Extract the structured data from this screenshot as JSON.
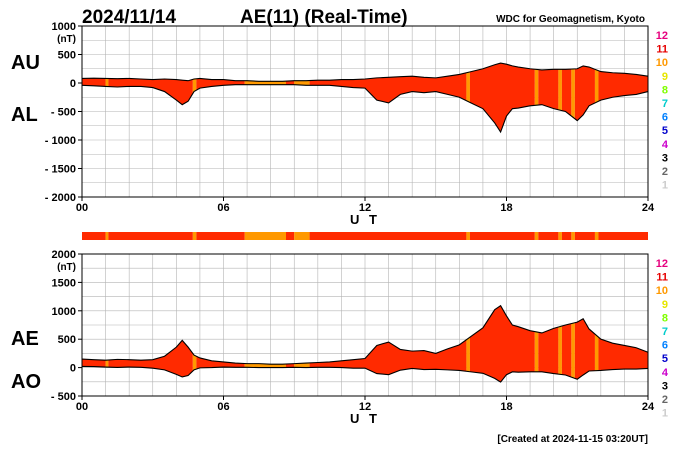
{
  "header": {
    "date": "2024/11/14",
    "title": "AE(11) (Real-Time)",
    "credit": "WDC for Geomagnetism, Kyoto"
  },
  "footer": {
    "created": "[Created at 2024-11-15 03:20UT]"
  },
  "legend": {
    "labels": [
      "12",
      "11",
      "10",
      "9",
      "8",
      "7",
      "6",
      "5",
      "4",
      "3",
      "2",
      "1"
    ],
    "colors": [
      "#e6007e",
      "#e60000",
      "#ff9900",
      "#e6e600",
      "#80ff00",
      "#00cccc",
      "#0080ff",
      "#0000cc",
      "#cc00cc",
      "#000000",
      "#666666",
      "#cccccc"
    ]
  },
  "colors": {
    "fill": "#ff2a00",
    "band10": "#ff9900",
    "band9": "#ffd400",
    "line": "#000000"
  },
  "chart_data": [
    {
      "type": "area",
      "side_labels": [
        "AU",
        "AL"
      ],
      "unit": "(nT)",
      "xlabel": "U T",
      "xlim": [
        0,
        24
      ],
      "ylim": [
        -2000,
        1000
      ],
      "yticks": [
        1000,
        500,
        0,
        -500,
        -1000,
        -1500,
        -2000
      ],
      "ytick_labels": [
        "1000",
        "500",
        "0",
        "- 500",
        "- 1000",
        "- 1500",
        "- 2000"
      ],
      "xticks": [
        0,
        6,
        12,
        18,
        24
      ],
      "xtick_labels": [
        "00",
        "06",
        "12",
        "18",
        "24"
      ],
      "grid": true,
      "x": [
        0,
        0.5,
        1,
        1.5,
        2,
        2.5,
        3,
        3.5,
        4,
        4.25,
        4.5,
        4.75,
        5,
        5.5,
        6,
        6.5,
        7,
        7.5,
        8,
        8.5,
        9,
        9.5,
        10,
        10.5,
        11,
        11.5,
        12,
        12.5,
        13,
        13.5,
        14,
        14.5,
        15,
        15.5,
        16,
        16.5,
        17,
        17.5,
        17.75,
        18,
        18.25,
        18.5,
        19,
        19.5,
        20,
        20.5,
        21,
        21.25,
        21.5,
        22,
        22.5,
        23,
        23.5,
        24
      ],
      "series": [
        {
          "name": "AU",
          "values": [
            80,
            85,
            80,
            75,
            80,
            70,
            60,
            70,
            60,
            50,
            40,
            70,
            80,
            60,
            60,
            40,
            40,
            30,
            30,
            30,
            40,
            40,
            50,
            50,
            60,
            60,
            70,
            90,
            100,
            110,
            120,
            100,
            90,
            120,
            150,
            200,
            250,
            320,
            350,
            330,
            300,
            280,
            250,
            230,
            240,
            240,
            250,
            300,
            280,
            200,
            180,
            170,
            150,
            120
          ]
        },
        {
          "name": "AL",
          "values": [
            -40,
            -50,
            -60,
            -70,
            -60,
            -60,
            -80,
            -150,
            -300,
            -380,
            -320,
            -150,
            -90,
            -60,
            -40,
            -30,
            -30,
            -30,
            -30,
            -30,
            -30,
            -40,
            -40,
            -40,
            -60,
            -80,
            -90,
            -300,
            -350,
            -200,
            -150,
            -170,
            -150,
            -200,
            -250,
            -350,
            -450,
            -700,
            -860,
            -580,
            -450,
            -440,
            -400,
            -380,
            -450,
            -500,
            -660,
            -560,
            -400,
            -300,
            -250,
            -220,
            -200,
            -150
          ]
        }
      ]
    },
    {
      "type": "area",
      "side_labels": [
        "AE",
        "AO"
      ],
      "unit": "(nT)",
      "xlabel": "U T",
      "xlim": [
        0,
        24
      ],
      "ylim": [
        -500,
        2000
      ],
      "yticks": [
        2000,
        1500,
        1000,
        500,
        0,
        -500
      ],
      "ytick_labels": [
        "2000",
        "1500",
        "1000",
        "500",
        "0",
        "- 500"
      ],
      "xticks": [
        0,
        6,
        12,
        18,
        24
      ],
      "xtick_labels": [
        "00",
        "06",
        "12",
        "18",
        "24"
      ],
      "grid": true,
      "x": [
        0,
        0.5,
        1,
        1.5,
        2,
        2.5,
        3,
        3.5,
        4,
        4.25,
        4.5,
        4.75,
        5,
        5.5,
        6,
        6.5,
        7,
        7.5,
        8,
        8.5,
        9,
        9.5,
        10,
        10.5,
        11,
        11.5,
        12,
        12.5,
        13,
        13.5,
        14,
        14.5,
        15,
        15.5,
        16,
        16.5,
        17,
        17.5,
        17.75,
        18,
        18.25,
        18.5,
        19,
        19.5,
        20,
        20.5,
        21,
        21.25,
        21.5,
        22,
        22.5,
        23,
        23.5,
        24
      ],
      "series": [
        {
          "name": "AE",
          "values": [
            150,
            140,
            130,
            145,
            140,
            130,
            140,
            200,
            360,
            480,
            360,
            220,
            170,
            120,
            100,
            80,
            70,
            70,
            60,
            60,
            70,
            80,
            90,
            100,
            120,
            140,
            160,
            390,
            450,
            320,
            290,
            300,
            250,
            330,
            400,
            550,
            700,
            1020,
            1090,
            910,
            750,
            720,
            650,
            610,
            690,
            750,
            800,
            860,
            680,
            500,
            430,
            390,
            350,
            270
          ]
        },
        {
          "name": "AO",
          "values": [
            20,
            18,
            10,
            3,
            10,
            5,
            -10,
            -40,
            -120,
            -165,
            -140,
            -40,
            -5,
            0,
            10,
            5,
            5,
            0,
            0,
            0,
            5,
            0,
            5,
            5,
            0,
            -10,
            -10,
            -105,
            -125,
            -45,
            -15,
            -35,
            -30,
            -40,
            -50,
            -75,
            -100,
            -190,
            -255,
            -125,
            -75,
            -80,
            -75,
            -75,
            -105,
            -130,
            -205,
            -130,
            -60,
            -50,
            -35,
            -25,
            -25,
            -15
          ]
        }
      ]
    }
  ],
  "activity_bands": [
    {
      "start": 0.0,
      "end": 1.0,
      "level": "11"
    },
    {
      "start": 1.0,
      "end": 1.12,
      "level": "10"
    },
    {
      "start": 1.12,
      "end": 4.7,
      "level": "11"
    },
    {
      "start": 4.7,
      "end": 4.85,
      "level": "10"
    },
    {
      "start": 4.85,
      "end": 6.9,
      "level": "11"
    },
    {
      "start": 6.9,
      "end": 8.65,
      "level": "10"
    },
    {
      "start": 8.65,
      "end": 9.0,
      "level": "11"
    },
    {
      "start": 9.0,
      "end": 9.65,
      "level": "10"
    },
    {
      "start": 9.65,
      "end": 16.3,
      "level": "11"
    },
    {
      "start": 16.3,
      "end": 16.45,
      "level": "10"
    },
    {
      "start": 16.45,
      "end": 19.2,
      "level": "11"
    },
    {
      "start": 19.2,
      "end": 19.35,
      "level": "10"
    },
    {
      "start": 19.35,
      "end": 20.2,
      "level": "11"
    },
    {
      "start": 20.2,
      "end": 20.35,
      "level": "10"
    },
    {
      "start": 20.35,
      "end": 20.75,
      "level": "11"
    },
    {
      "start": 20.75,
      "end": 20.9,
      "level": "10"
    },
    {
      "start": 20.9,
      "end": 21.75,
      "level": "11"
    },
    {
      "start": 21.75,
      "end": 21.9,
      "level": "10"
    },
    {
      "start": 21.9,
      "end": 24.0,
      "level": "11"
    }
  ]
}
